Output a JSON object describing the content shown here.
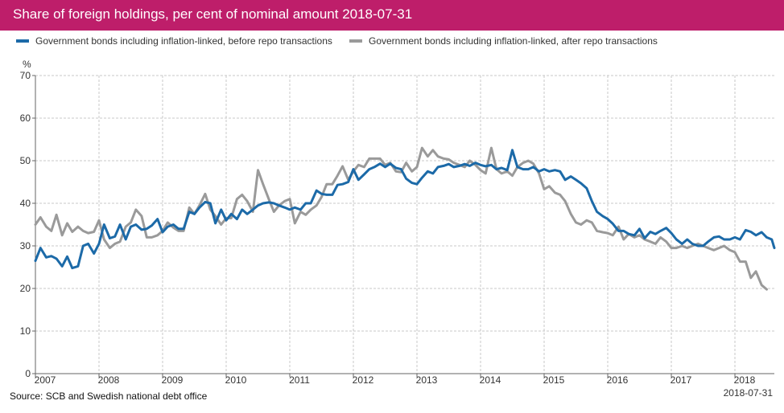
{
  "chart_data": {
    "type": "line",
    "title": "Share of foreign holdings, per cent of nominal amount 2018-07-31",
    "ylabel": "%",
    "xlabel": "",
    "ylim": [
      0,
      70
    ],
    "yticks": [
      0,
      10,
      20,
      30,
      40,
      50,
      60,
      70
    ],
    "xlim": [
      2007.0,
      2018.62
    ],
    "xticks": [
      "2007",
      "2008",
      "2009",
      "2010",
      "2011",
      "2012",
      "2013",
      "2014",
      "2015",
      "2016",
      "2017",
      "2018"
    ],
    "grid": true,
    "legend_position": "top",
    "series": [
      {
        "name": "Government bonds including inflation-linked, before repo transactions",
        "color": "#1c6aa8",
        "points": [
          [
            2007.0,
            26.5
          ],
          [
            2007.08,
            29.5
          ],
          [
            2007.17,
            27.3
          ],
          [
            2007.25,
            27.6
          ],
          [
            2007.33,
            27.0
          ],
          [
            2007.42,
            25.2
          ],
          [
            2007.5,
            27.5
          ],
          [
            2007.58,
            24.8
          ],
          [
            2007.67,
            25.2
          ],
          [
            2007.75,
            30.0
          ],
          [
            2007.83,
            30.5
          ],
          [
            2007.92,
            28.2
          ],
          [
            2008.0,
            30.5
          ],
          [
            2008.08,
            35.0
          ],
          [
            2008.17,
            31.8
          ],
          [
            2008.25,
            32.2
          ],
          [
            2008.33,
            35.0
          ],
          [
            2008.42,
            31.5
          ],
          [
            2008.5,
            34.5
          ],
          [
            2008.58,
            35.0
          ],
          [
            2008.67,
            33.8
          ],
          [
            2008.75,
            34.0
          ],
          [
            2008.83,
            34.8
          ],
          [
            2008.92,
            36.3
          ],
          [
            2009.0,
            33.2
          ],
          [
            2009.08,
            34.5
          ],
          [
            2009.17,
            35.0
          ],
          [
            2009.25,
            34.0
          ],
          [
            2009.33,
            34.0
          ],
          [
            2009.42,
            38.0
          ],
          [
            2009.5,
            37.5
          ],
          [
            2009.58,
            39.0
          ],
          [
            2009.67,
            40.3
          ],
          [
            2009.75,
            40.0
          ],
          [
            2009.83,
            35.3
          ],
          [
            2009.92,
            38.5
          ],
          [
            2010.0,
            36.0
          ],
          [
            2010.08,
            37.5
          ],
          [
            2010.17,
            36.3
          ],
          [
            2010.25,
            38.5
          ],
          [
            2010.33,
            37.5
          ],
          [
            2010.42,
            38.5
          ],
          [
            2010.5,
            39.5
          ],
          [
            2010.58,
            40.0
          ],
          [
            2010.67,
            40.2
          ],
          [
            2010.75,
            40.0
          ],
          [
            2010.83,
            39.5
          ],
          [
            2010.92,
            39.0
          ],
          [
            2011.0,
            38.5
          ],
          [
            2011.08,
            39.0
          ],
          [
            2011.17,
            38.5
          ],
          [
            2011.25,
            40.0
          ],
          [
            2011.33,
            40.0
          ],
          [
            2011.42,
            43.0
          ],
          [
            2011.5,
            42.2
          ],
          [
            2011.58,
            42.0
          ],
          [
            2011.67,
            42.0
          ],
          [
            2011.75,
            44.3
          ],
          [
            2011.83,
            44.5
          ],
          [
            2011.92,
            45.0
          ],
          [
            2012.0,
            48.0
          ],
          [
            2012.08,
            45.5
          ],
          [
            2012.17,
            46.8
          ],
          [
            2012.25,
            48.0
          ],
          [
            2012.33,
            48.5
          ],
          [
            2012.42,
            49.3
          ],
          [
            2012.5,
            48.5
          ],
          [
            2012.58,
            49.3
          ],
          [
            2012.67,
            48.3
          ],
          [
            2012.75,
            48.0
          ],
          [
            2012.83,
            45.8
          ],
          [
            2012.92,
            44.8
          ],
          [
            2013.0,
            44.5
          ],
          [
            2013.08,
            46.0
          ],
          [
            2013.17,
            47.5
          ],
          [
            2013.25,
            47.0
          ],
          [
            2013.33,
            48.5
          ],
          [
            2013.42,
            48.8
          ],
          [
            2013.5,
            49.2
          ],
          [
            2013.58,
            48.5
          ],
          [
            2013.67,
            48.8
          ],
          [
            2013.75,
            49.2
          ],
          [
            2013.83,
            48.8
          ],
          [
            2013.92,
            49.5
          ],
          [
            2014.0,
            49.0
          ],
          [
            2014.08,
            48.7
          ],
          [
            2014.17,
            49.0
          ],
          [
            2014.25,
            48.0
          ],
          [
            2014.33,
            48.3
          ],
          [
            2014.42,
            47.8
          ],
          [
            2014.5,
            52.5
          ],
          [
            2014.58,
            48.5
          ],
          [
            2014.67,
            48.0
          ],
          [
            2014.75,
            48.0
          ],
          [
            2014.83,
            48.5
          ],
          [
            2014.92,
            47.5
          ],
          [
            2015.0,
            48.0
          ],
          [
            2015.08,
            47.5
          ],
          [
            2015.17,
            47.8
          ],
          [
            2015.25,
            47.5
          ],
          [
            2015.33,
            45.5
          ],
          [
            2015.42,
            46.3
          ],
          [
            2015.5,
            45.5
          ],
          [
            2015.58,
            44.7
          ],
          [
            2015.67,
            43.5
          ],
          [
            2015.75,
            40.5
          ],
          [
            2015.83,
            38.0
          ],
          [
            2015.92,
            37.0
          ],
          [
            2016.0,
            36.3
          ],
          [
            2016.08,
            35.2
          ],
          [
            2016.17,
            33.5
          ],
          [
            2016.25,
            33.5
          ],
          [
            2016.33,
            32.8
          ],
          [
            2016.42,
            32.5
          ],
          [
            2016.5,
            34.0
          ],
          [
            2016.58,
            31.8
          ],
          [
            2016.67,
            33.3
          ],
          [
            2016.75,
            32.8
          ],
          [
            2016.83,
            33.5
          ],
          [
            2016.92,
            34.2
          ],
          [
            2017.0,
            33.0
          ],
          [
            2017.08,
            31.5
          ],
          [
            2017.17,
            30.5
          ],
          [
            2017.25,
            31.5
          ],
          [
            2017.33,
            30.5
          ],
          [
            2017.42,
            30.0
          ],
          [
            2017.5,
            30.0
          ],
          [
            2017.58,
            31.0
          ],
          [
            2017.67,
            32.0
          ],
          [
            2017.75,
            32.2
          ],
          [
            2017.83,
            31.5
          ],
          [
            2017.92,
            31.5
          ],
          [
            2018.0,
            32.0
          ],
          [
            2018.08,
            31.5
          ],
          [
            2018.17,
            33.7
          ],
          [
            2018.25,
            33.3
          ],
          [
            2018.33,
            32.5
          ],
          [
            2018.42,
            33.2
          ],
          [
            2018.5,
            32.0
          ],
          [
            2018.58,
            31.5
          ],
          [
            2018.62,
            29.5
          ]
        ]
      },
      {
        "name": "Government bonds including inflation-linked, after repo transactions",
        "color": "#9a9a9a",
        "points": [
          [
            2007.0,
            35.0
          ],
          [
            2007.08,
            36.7
          ],
          [
            2007.17,
            34.5
          ],
          [
            2007.25,
            33.5
          ],
          [
            2007.33,
            37.3
          ],
          [
            2007.42,
            32.5
          ],
          [
            2007.5,
            35.3
          ],
          [
            2007.58,
            33.3
          ],
          [
            2007.67,
            34.5
          ],
          [
            2007.75,
            33.5
          ],
          [
            2007.83,
            33.0
          ],
          [
            2007.92,
            33.3
          ],
          [
            2008.0,
            36.0
          ],
          [
            2008.08,
            31.5
          ],
          [
            2008.17,
            29.5
          ],
          [
            2008.25,
            30.5
          ],
          [
            2008.33,
            31.0
          ],
          [
            2008.42,
            34.5
          ],
          [
            2008.5,
            35.5
          ],
          [
            2008.58,
            38.5
          ],
          [
            2008.67,
            37.0
          ],
          [
            2008.75,
            32.0
          ],
          [
            2008.83,
            32.0
          ],
          [
            2008.92,
            32.5
          ],
          [
            2009.0,
            33.5
          ],
          [
            2009.08,
            35.5
          ],
          [
            2009.17,
            34.3
          ],
          [
            2009.25,
            33.5
          ],
          [
            2009.33,
            33.5
          ],
          [
            2009.42,
            39.0
          ],
          [
            2009.5,
            37.5
          ],
          [
            2009.58,
            39.5
          ],
          [
            2009.67,
            42.2
          ],
          [
            2009.75,
            38.5
          ],
          [
            2009.83,
            37.0
          ],
          [
            2009.92,
            35.0
          ],
          [
            2010.0,
            36.5
          ],
          [
            2010.08,
            36.5
          ],
          [
            2010.17,
            41.0
          ],
          [
            2010.25,
            42.0
          ],
          [
            2010.33,
            40.5
          ],
          [
            2010.42,
            38.0
          ],
          [
            2010.5,
            47.8
          ],
          [
            2010.58,
            44.5
          ],
          [
            2010.67,
            41.0
          ],
          [
            2010.75,
            38.0
          ],
          [
            2010.83,
            39.5
          ],
          [
            2010.92,
            40.5
          ],
          [
            2011.0,
            41.0
          ],
          [
            2011.08,
            35.3
          ],
          [
            2011.17,
            38.0
          ],
          [
            2011.25,
            37.3
          ],
          [
            2011.33,
            38.5
          ],
          [
            2011.42,
            39.5
          ],
          [
            2011.5,
            41.5
          ],
          [
            2011.58,
            44.5
          ],
          [
            2011.67,
            44.5
          ],
          [
            2011.75,
            46.5
          ],
          [
            2011.83,
            48.7
          ],
          [
            2011.92,
            45.5
          ],
          [
            2012.0,
            47.5
          ],
          [
            2012.08,
            49.0
          ],
          [
            2012.17,
            48.5
          ],
          [
            2012.25,
            50.5
          ],
          [
            2012.33,
            50.5
          ],
          [
            2012.42,
            50.5
          ],
          [
            2012.5,
            49.0
          ],
          [
            2012.58,
            49.5
          ],
          [
            2012.67,
            47.5
          ],
          [
            2012.75,
            47.3
          ],
          [
            2012.83,
            49.5
          ],
          [
            2012.92,
            47.5
          ],
          [
            2013.0,
            48.5
          ],
          [
            2013.08,
            53.0
          ],
          [
            2013.17,
            51.0
          ],
          [
            2013.25,
            52.5
          ],
          [
            2013.33,
            51.0
          ],
          [
            2013.42,
            50.5
          ],
          [
            2013.5,
            50.3
          ],
          [
            2013.58,
            49.5
          ],
          [
            2013.67,
            49.0
          ],
          [
            2013.75,
            48.5
          ],
          [
            2013.83,
            50.0
          ],
          [
            2013.92,
            49.0
          ],
          [
            2014.0,
            47.8
          ],
          [
            2014.08,
            47.0
          ],
          [
            2014.17,
            53.0
          ],
          [
            2014.25,
            48.0
          ],
          [
            2014.33,
            47.0
          ],
          [
            2014.42,
            47.5
          ],
          [
            2014.5,
            46.5
          ],
          [
            2014.58,
            48.5
          ],
          [
            2014.67,
            49.5
          ],
          [
            2014.75,
            50.0
          ],
          [
            2014.83,
            49.3
          ],
          [
            2014.92,
            47.0
          ],
          [
            2015.0,
            43.3
          ],
          [
            2015.08,
            44.0
          ],
          [
            2015.17,
            42.5
          ],
          [
            2015.25,
            42.0
          ],
          [
            2015.33,
            40.5
          ],
          [
            2015.42,
            37.5
          ],
          [
            2015.5,
            35.5
          ],
          [
            2015.58,
            35.0
          ],
          [
            2015.67,
            36.0
          ],
          [
            2015.75,
            35.5
          ],
          [
            2015.83,
            33.5
          ],
          [
            2015.92,
            33.2
          ],
          [
            2016.0,
            33.0
          ],
          [
            2016.08,
            32.5
          ],
          [
            2016.17,
            34.5
          ],
          [
            2016.25,
            31.5
          ],
          [
            2016.33,
            32.8
          ],
          [
            2016.42,
            32.0
          ],
          [
            2016.5,
            32.5
          ],
          [
            2016.58,
            31.5
          ],
          [
            2016.67,
            31.0
          ],
          [
            2016.75,
            30.5
          ],
          [
            2016.83,
            32.0
          ],
          [
            2016.92,
            31.0
          ],
          [
            2017.0,
            29.5
          ],
          [
            2017.08,
            29.5
          ],
          [
            2017.17,
            30.0
          ],
          [
            2017.25,
            29.5
          ],
          [
            2017.33,
            30.0
          ],
          [
            2017.42,
            30.5
          ],
          [
            2017.5,
            30.0
          ],
          [
            2017.58,
            29.5
          ],
          [
            2017.67,
            29.0
          ],
          [
            2017.75,
            29.5
          ],
          [
            2017.83,
            30.0
          ],
          [
            2017.92,
            29.0
          ],
          [
            2018.0,
            28.5
          ],
          [
            2018.08,
            26.3
          ],
          [
            2018.17,
            26.3
          ],
          [
            2018.25,
            22.5
          ],
          [
            2018.33,
            24.0
          ],
          [
            2018.42,
            20.8
          ],
          [
            2018.5,
            19.8
          ]
        ]
      }
    ]
  },
  "source": "Source: SCB and Swedish national debt office",
  "date_note": "2018-07-31",
  "colors": {
    "title_bar": "#be1e6a",
    "grid": "#c8c8c8"
  }
}
